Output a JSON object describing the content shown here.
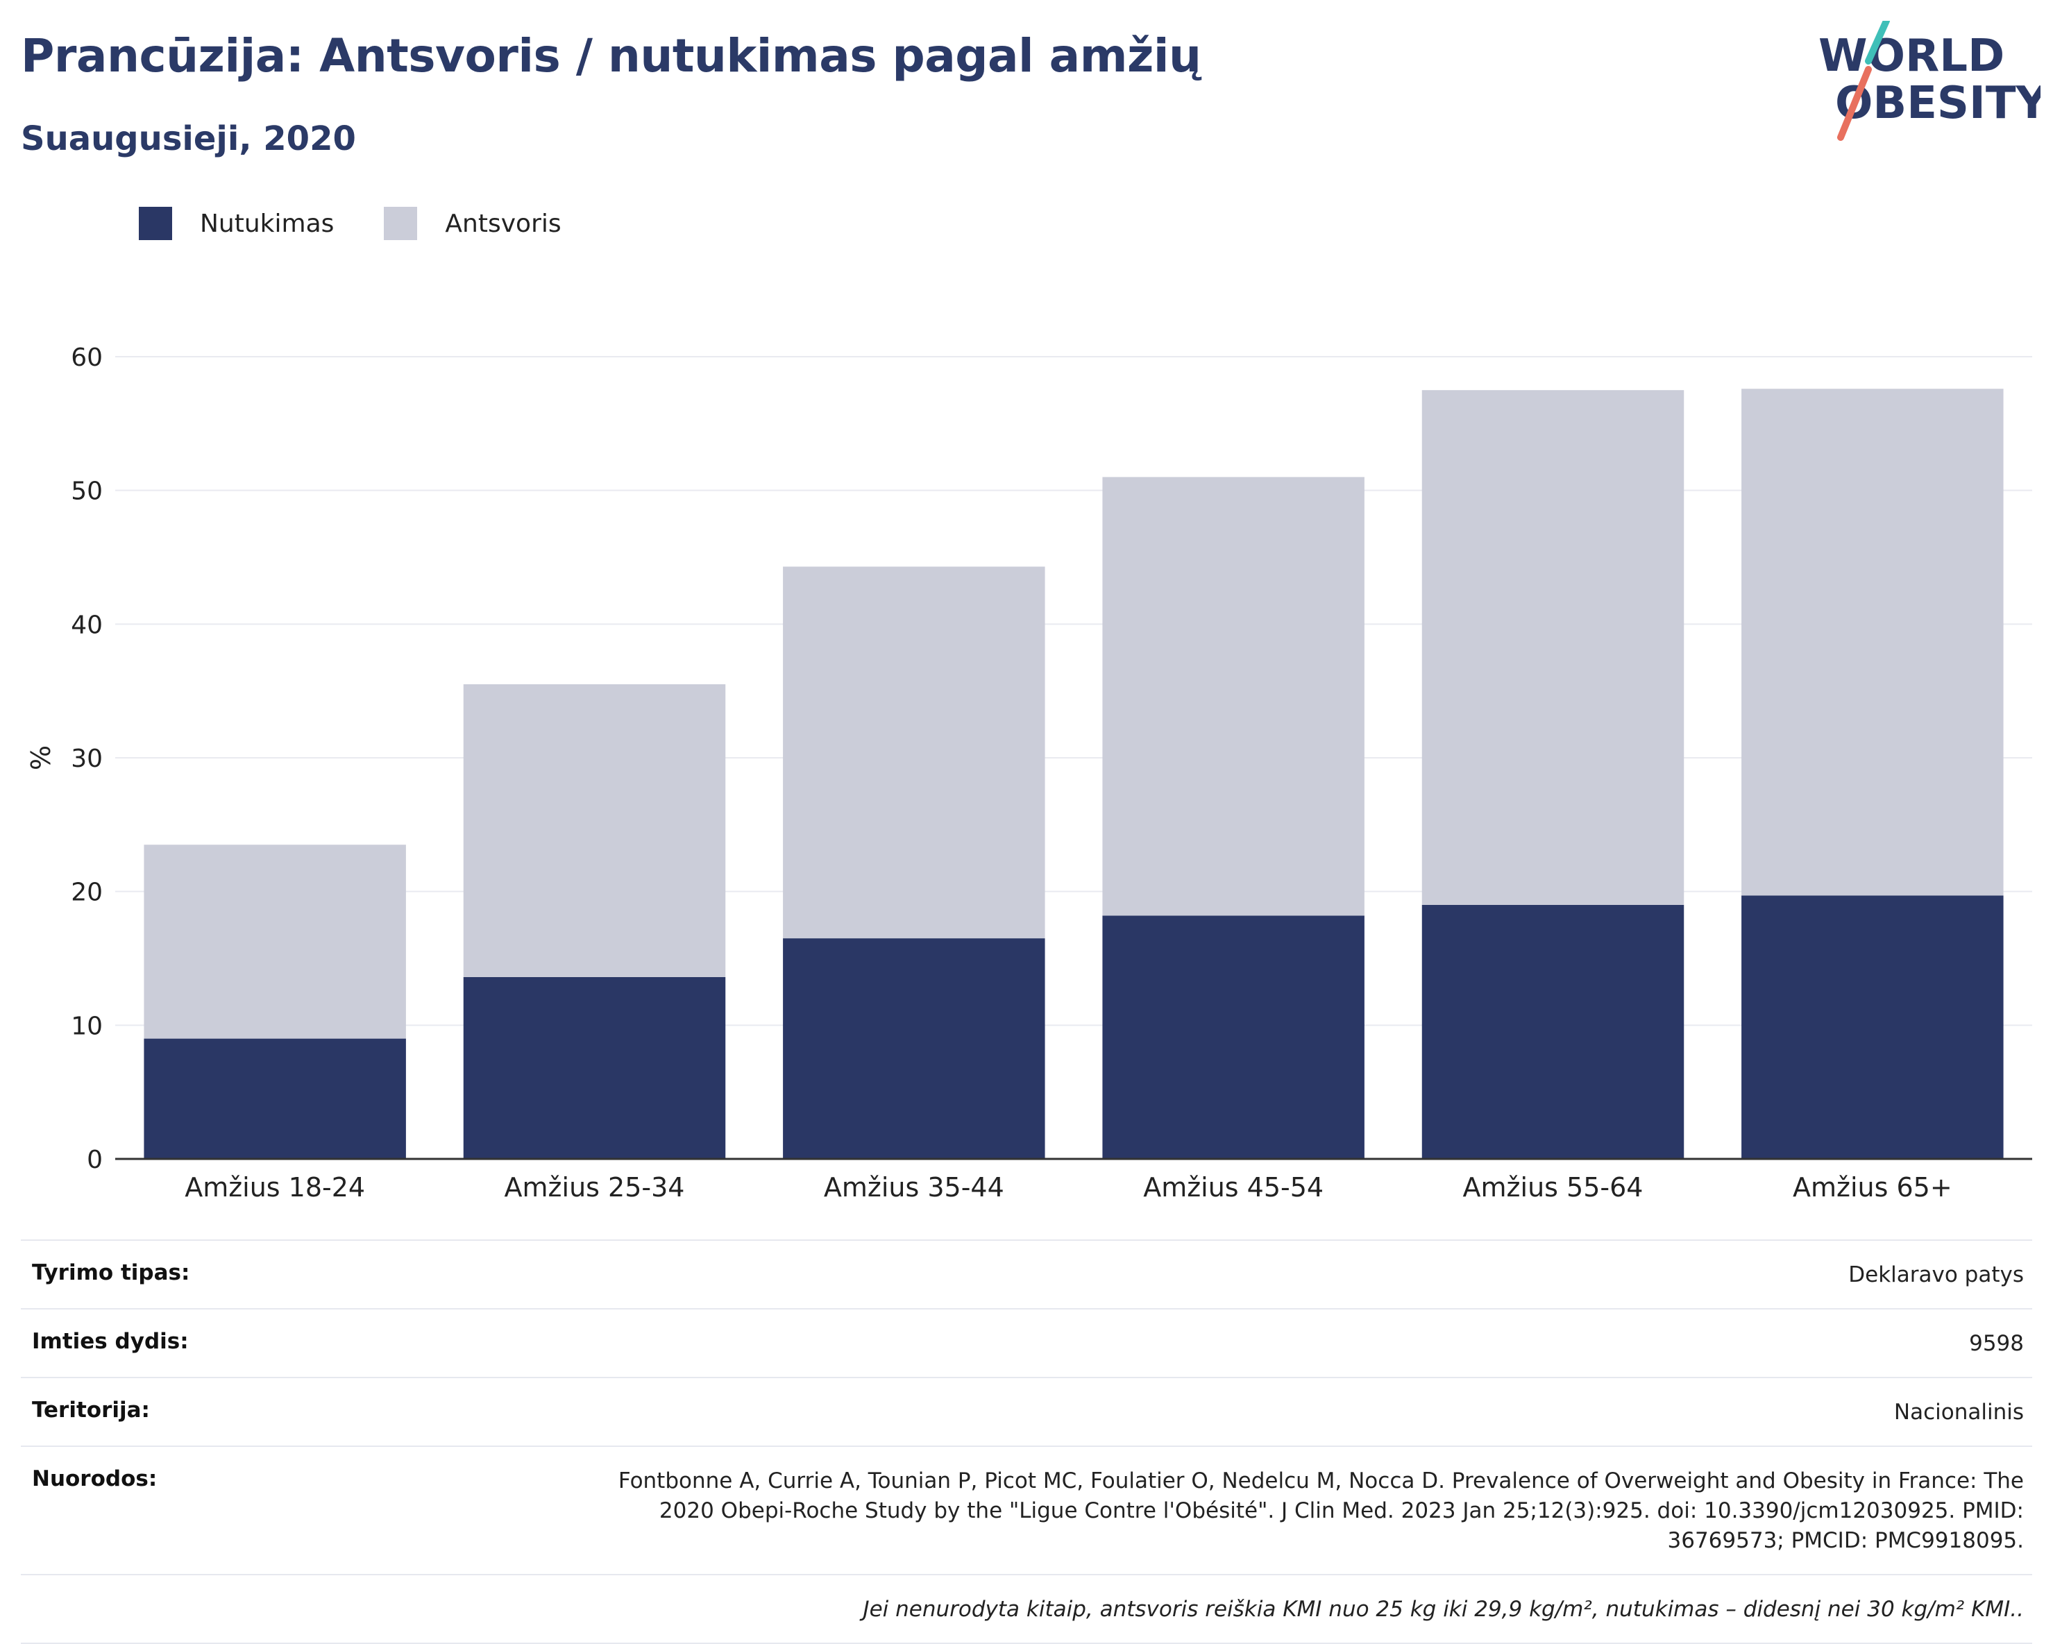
{
  "header": {
    "title": "Prancūzija: Antsvoris / nutukimas pagal amžių",
    "subtitle": "Suaugusieji, 2020"
  },
  "logo": {
    "line1": "WORLD",
    "line2": "OBESITY"
  },
  "colors": {
    "obesity": "#2a3765",
    "overweight": "#cbcdd9",
    "title": "#2b3a67",
    "grid": "#e9eaf0",
    "logo_teal": "#3fbfb8",
    "logo_coral": "#e8705e"
  },
  "legend": [
    {
      "label": "Nutukimas",
      "color": "#2a3765"
    },
    {
      "label": "Antsvoris",
      "color": "#cbcdd9"
    }
  ],
  "chart_data": {
    "type": "bar",
    "stacked": true,
    "title": "",
    "xlabel": "",
    "ylabel": "%",
    "ylim": [
      0,
      60
    ],
    "yticks": [
      0,
      10,
      20,
      30,
      40,
      50,
      60
    ],
    "grid": true,
    "legend_position": "top-left",
    "categories": [
      "Amžius 18-24",
      "Amžius 25-34",
      "Amžius 35-44",
      "Amžius 45-54",
      "Amžius 55-64",
      "Amžius 65+"
    ],
    "series": [
      {
        "name": "Nutukimas",
        "values": [
          9.0,
          13.6,
          16.5,
          18.2,
          19.0,
          19.7
        ]
      },
      {
        "name": "Antsvoris",
        "values": [
          14.5,
          21.9,
          27.8,
          32.8,
          38.5,
          37.9
        ]
      }
    ]
  },
  "info": {
    "rows": [
      {
        "label": "Tyrimo tipas:",
        "value": "Deklaravo patys"
      },
      {
        "label": "Imties dydis:",
        "value": "9598"
      },
      {
        "label": "Teritorija:",
        "value": "Nacionalinis"
      },
      {
        "label": "Nuorodos:",
        "value": "Fontbonne A, Currie A, Tounian P, Picot MC, Foulatier O, Nedelcu M, Nocca D. Prevalence of Overweight and Obesity in France: The 2020 Obepi-Roche Study by the \"Ligue Contre l'Obésité\". J Clin Med. 2023 Jan 25;12(3):925. doi: 10.3390/jcm12030925. PMID: 36769573; PMCID: PMC9918095."
      }
    ],
    "note": "Jei nenurodyta kitaip, antsvoris reiškia KMI nuo 25 kg iki 29,9 kg/m², nutukimas – didesnį nei 30 kg/m² KMI.."
  }
}
